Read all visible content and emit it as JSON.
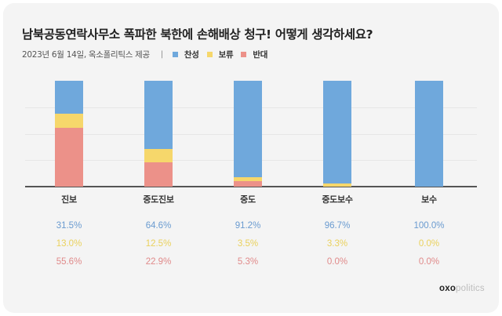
{
  "header": {
    "title": "남북공동연락사무소 폭파한 북한에 손해배상 청구! 어떻게 생각하세요?",
    "source": "2023년 6월 14일, 옥소폴리틱스 제공",
    "separator": "|"
  },
  "legend": [
    {
      "label": "찬성",
      "color": "#6fa8dc"
    },
    {
      "label": "보류",
      "color": "#f6d76b"
    },
    {
      "label": "반대",
      "color": "#ec9189"
    }
  ],
  "colors": {
    "agree": "#6fa8dc",
    "hold": "#f6d76b",
    "disagree": "#ec9189",
    "agree_text": "#6a9bd0",
    "hold_text": "#ead15c",
    "disagree_text": "#e08a8a"
  },
  "values_text": {
    "agree": [
      "31.5%",
      "64.6%",
      "91.2%",
      "96.7%",
      "100.0%"
    ],
    "hold": [
      "13.0%",
      "12.5%",
      "3.5%",
      "3.3%",
      "0.0%"
    ],
    "disagree": [
      "55.6%",
      "22.9%",
      "5.3%",
      "0.0%",
      "0.0%"
    ]
  },
  "brand": {
    "part1": "oxo",
    "part2": "politics"
  },
  "chart_data": {
    "type": "bar",
    "stacked": true,
    "normalized": true,
    "title": "남북공동연락사무소 폭파한 북한에 손해배상 청구! 어떻게 생각하세요?",
    "subtitle": "2023년 6월 14일, 옥소폴리틱스 제공",
    "categories": [
      "진보",
      "중도진보",
      "중도",
      "중도보수",
      "보수"
    ],
    "series": [
      {
        "name": "찬성",
        "color": "#6fa8dc",
        "values": [
          31.5,
          64.6,
          91.2,
          96.7,
          100.0
        ]
      },
      {
        "name": "보류",
        "color": "#f6d76b",
        "values": [
          13.0,
          12.5,
          3.5,
          3.3,
          0.0
        ]
      },
      {
        "name": "반대",
        "color": "#ec9189",
        "values": [
          55.6,
          22.9,
          5.3,
          0.0,
          0.0
        ]
      }
    ],
    "xlabel": "",
    "ylabel": "",
    "ylim": [
      0,
      100
    ],
    "grid": true,
    "legend_position": "top-left, under title",
    "stack_order_bottom_to_top": [
      "반대",
      "보류",
      "찬성"
    ]
  }
}
